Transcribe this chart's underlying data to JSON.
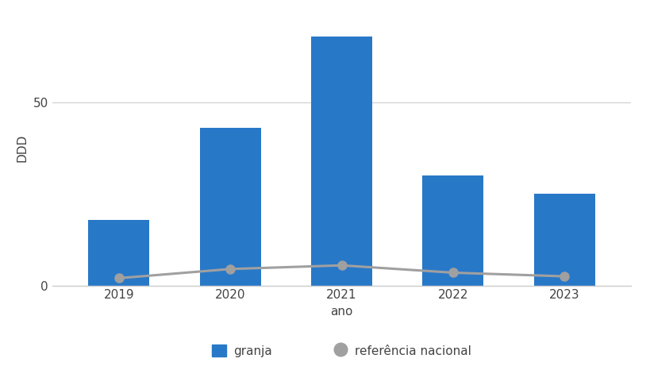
{
  "years": [
    2019,
    2020,
    2021,
    2022,
    2023
  ],
  "bar_values": [
    18,
    43,
    68,
    30,
    25
  ],
  "line_values": [
    2.0,
    4.5,
    5.5,
    3.5,
    2.5
  ],
  "bar_color": "#2878C8",
  "line_color": "#a0a0a0",
  "ylabel": "DDD",
  "xlabel": "ano",
  "yticks": [
    0,
    50
  ],
  "ylim": [
    0,
    75
  ],
  "legend_bar_label": "granja",
  "legend_line_label": "referência nacional",
  "bar_width": 0.55,
  "background_color": "#ffffff",
  "grid_color": "#cccccc",
  "font_color": "#444444",
  "legend_fontsize": 11,
  "axis_fontsize": 11,
  "tick_fontsize": 11
}
